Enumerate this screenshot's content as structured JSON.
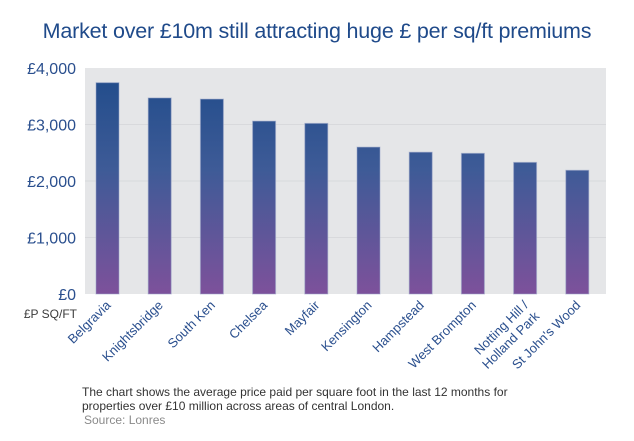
{
  "chart_data": {
    "type": "bar",
    "title": "Market over £10m still attracting huge £ per sq/ft premiums",
    "xlabel": "",
    "ylabel": "£P SQ/FT",
    "categories": [
      "Belgravia",
      "Knightsbridge",
      "South Ken",
      "Chelsea",
      "Mayfair",
      "Kensington",
      "Hampstead",
      "West Brompton",
      "Notting Hill /\nHolland Park",
      "St John's Wood"
    ],
    "values": [
      3740,
      3470,
      3450,
      3060,
      3020,
      2600,
      2510,
      2490,
      2330,
      2190
    ],
    "ylim": [
      0,
      4000
    ],
    "yticks": [
      0,
      1000,
      2000,
      3000,
      4000
    ],
    "ytick_labels": [
      "£0",
      "£1,000",
      "£2,000",
      "£3,000",
      "£4,000"
    ],
    "grid": true,
    "legend": "none",
    "colors": {
      "bar_top": "#1f4b8a",
      "bar_bottom": "#7d519b",
      "plot_bg": "#e5e6e8",
      "grid": "#d8d9dc",
      "text": "#2a4f8e"
    }
  },
  "caption": "The chart shows the average price paid per square foot in the last 12 months for properties over £10 million across areas of central London.",
  "source": "Source: Lonres"
}
